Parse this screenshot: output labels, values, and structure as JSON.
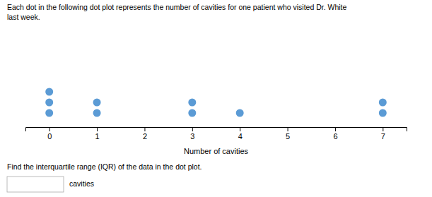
{
  "chart_data": {
    "type": "dot",
    "title": [
      "Each dot in the following dot plot represents the number of cavities for one patient who visited Dr. White",
      "last week."
    ],
    "x": [
      0,
      1,
      2,
      3,
      4,
      5,
      6,
      7
    ],
    "values": [
      3,
      2,
      0,
      2,
      1,
      0,
      0,
      2
    ],
    "color": "#5B9BD5",
    "x_label": "Number of cavities",
    "xlim": [
      -0.5,
      7.5
    ],
    "xticks": [
      0,
      1,
      2,
      3,
      4,
      5,
      6,
      7
    ],
    "grid": false,
    "annotations": [
      "Find the interquartile range (IQR) of the data in the dot plot.",
      "cavities"
    ]
  }
}
